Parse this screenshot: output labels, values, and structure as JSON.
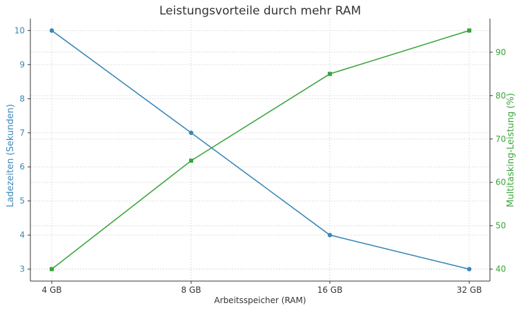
{
  "chart_data": {
    "type": "line",
    "title": "Leistungsvorteile durch mehr RAM",
    "xlabel": "Arbeitsspeicher (RAM)",
    "categories": [
      "4 GB",
      "8 GB",
      "16 GB",
      "32 GB"
    ],
    "grid": true,
    "series": [
      {
        "name": "Ladezeiten (Sekunden)",
        "axis": "left",
        "color": "#3a87b8",
        "marker": "circle",
        "values": [
          10,
          7,
          4,
          3
        ]
      },
      {
        "name": "Multitasking-Leistung (%)",
        "axis": "right",
        "color": "#3aa53a",
        "marker": "square",
        "values": [
          40,
          65,
          85,
          95
        ]
      }
    ],
    "left_axis": {
      "label": "Ladezeiten (Sekunden)",
      "ticks": [
        3,
        4,
        5,
        6,
        7,
        8,
        9,
        10
      ],
      "range": [
        2.65,
        10.35
      ],
      "color": "#3a87b8"
    },
    "right_axis": {
      "label": "Multitasking-Leistung (%)",
      "ticks": [
        40,
        50,
        60,
        70,
        80,
        90
      ],
      "range": [
        37.25,
        97.75
      ],
      "color": "#3aa53a"
    }
  }
}
